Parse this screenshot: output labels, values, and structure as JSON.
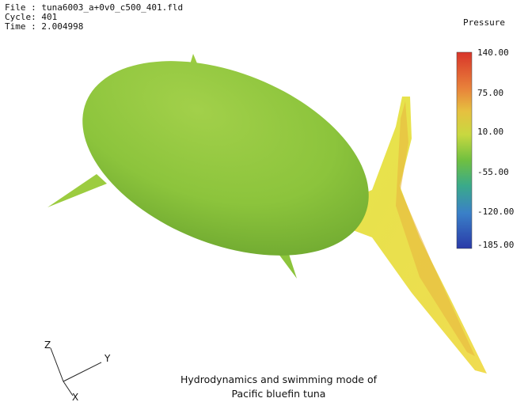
{
  "header": {
    "lines": [
      "File : tuna6003_a+0v0_c500_401.fld",
      "Cycle: 401",
      "Time : 2.004998"
    ]
  },
  "legend": {
    "title": "Pressure",
    "labels": [
      "140.00",
      "75.00",
      "10.00",
      "-55.00",
      "-120.00",
      "-185.00"
    ]
  },
  "axes": {
    "z": "Z",
    "y": "Y",
    "x": "X"
  },
  "caption": [
    "Hydrodynamics and swimming mode of",
    "Pacific bluefin tuna"
  ]
}
